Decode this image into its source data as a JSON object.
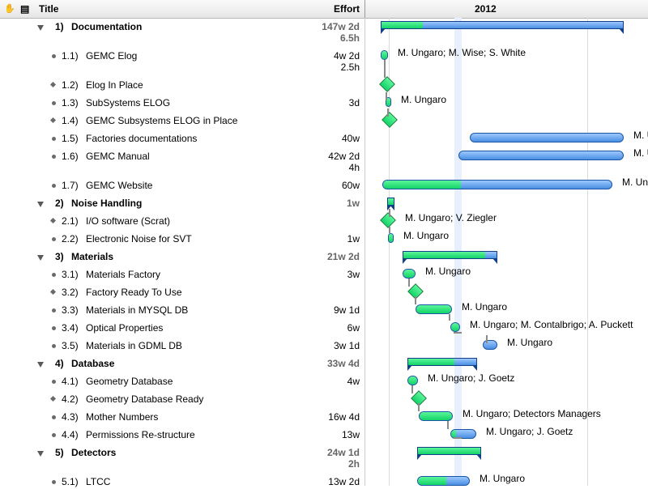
{
  "header": {
    "title_col": "Title",
    "effort_col": "Effort",
    "year": "2012"
  },
  "rows": [
    {
      "num": "1)",
      "title": "Documentation",
      "effort": "147w 2d",
      "effort2": "6.5h",
      "res": ""
    },
    {
      "num": "1.1)",
      "title": "GEMC Elog",
      "effort": "4w 2d",
      "effort2": "2.5h",
      "res": "M. Ungaro; M. Wise; S. White"
    },
    {
      "num": "1.2)",
      "title": "Elog In Place",
      "effort": "",
      "effort2": "",
      "res": ""
    },
    {
      "num": "1.3)",
      "title": "SubSystems ELOG",
      "effort": "3d",
      "effort2": "",
      "res": "M. Ungaro"
    },
    {
      "num": "1.4)",
      "title": "GEMC Subsystems ELOG in Place",
      "effort": "",
      "effort2": "",
      "res": ""
    },
    {
      "num": "1.5)",
      "title": "Factories documentations",
      "effort": "40w",
      "effort2": "",
      "res": "M. U"
    },
    {
      "num": "1.6)",
      "title": "GEMC Manual",
      "effort": "42w 2d",
      "effort2": "4h",
      "res": "M. U"
    },
    {
      "num": "1.7)",
      "title": "GEMC Website",
      "effort": "60w",
      "effort2": "",
      "res": "M. Un"
    },
    {
      "num": "2)",
      "title": "Noise Handling",
      "effort": "1w",
      "effort2": "",
      "res": ""
    },
    {
      "num": "2.1)",
      "title": "I/O software (Scrat)",
      "effort": "",
      "effort2": "",
      "res": "M. Ungaro; V. Ziegler"
    },
    {
      "num": "2.2)",
      "title": "Electronic Noise for SVT",
      "effort": "1w",
      "effort2": "",
      "res": "M. Ungaro"
    },
    {
      "num": "3)",
      "title": "Materials",
      "effort": "21w 2d",
      "effort2": "",
      "res": ""
    },
    {
      "num": "3.1)",
      "title": "Materials Factory",
      "effort": "3w",
      "effort2": "",
      "res": "M. Ungaro"
    },
    {
      "num": "3.2)",
      "title": "Factory Ready To Use",
      "effort": "",
      "effort2": "",
      "res": ""
    },
    {
      "num": "3.3)",
      "title": "Materials in MYSQL DB",
      "effort": "9w 1d",
      "effort2": "",
      "res": "M. Ungaro"
    },
    {
      "num": "3.4)",
      "title": "Optical Properties",
      "effort": "6w",
      "effort2": "",
      "res": "M. Ungaro; M. Contalbrigo; A. Puckett"
    },
    {
      "num": "3.5)",
      "title": "Materials in GDML DB",
      "effort": "3w 1d",
      "effort2": "",
      "res": "M. Ungaro"
    },
    {
      "num": "4)",
      "title": "Database",
      "effort": "33w 4d",
      "effort2": "",
      "res": ""
    },
    {
      "num": "4.1)",
      "title": "Geometry Database",
      "effort": "4w",
      "effort2": "",
      "res": "M. Ungaro; J. Goetz"
    },
    {
      "num": "4.2)",
      "title": "Geometry Database Ready",
      "effort": "",
      "effort2": "",
      "res": ""
    },
    {
      "num": "4.3)",
      "title": "Mother Numbers",
      "effort": "16w 4d",
      "effort2": "",
      "res": "M. Ungaro; Detectors Managers"
    },
    {
      "num": "4.4)",
      "title": "Permissions Re-structure",
      "effort": "13w",
      "effort2": "",
      "res": "M. Ungaro; J. Goetz"
    },
    {
      "num": "5)",
      "title": "Detectors",
      "effort": "24w 1d",
      "effort2": "2h",
      "res": ""
    },
    {
      "num": "5.1)",
      "title": "LTCC",
      "effort": "13w 2d",
      "effort2": "",
      "res": "M. Ungaro"
    }
  ],
  "colors": {
    "bar_blue": "#4a8fe2",
    "bar_green": "#12d468"
  }
}
